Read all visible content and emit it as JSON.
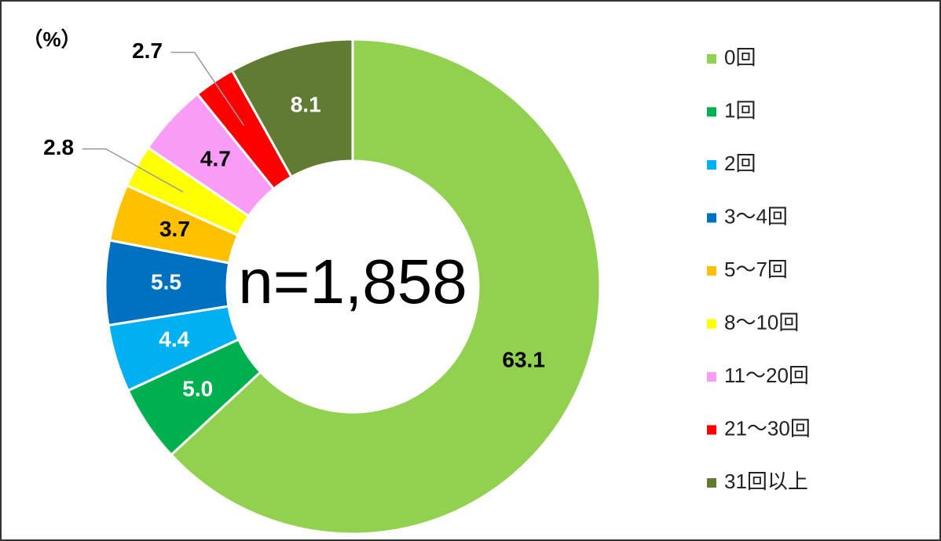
{
  "chart_data": {
    "type": "donut",
    "unit_label": "（%）",
    "center_label": "n=1,858",
    "categories": [
      "0回",
      "1回",
      "2回",
      "3～4回",
      "5～7回",
      "8～10回",
      "11～20回",
      "21～30回",
      "31回以上"
    ],
    "values": [
      63.1,
      5.0,
      4.4,
      5.5,
      3.7,
      2.8,
      4.7,
      2.7,
      8.1
    ],
    "value_labels": [
      "63.1",
      "5.0",
      "4.4",
      "5.5",
      "3.7",
      "2.8",
      "4.7",
      "2.7",
      "8.1"
    ],
    "colors": [
      "#92d050",
      "#00b050",
      "#00b0f0",
      "#0070c0",
      "#ffc000",
      "#ffff00",
      "#f99cf5",
      "#ff0000",
      "#617b32"
    ],
    "legend": "right"
  }
}
